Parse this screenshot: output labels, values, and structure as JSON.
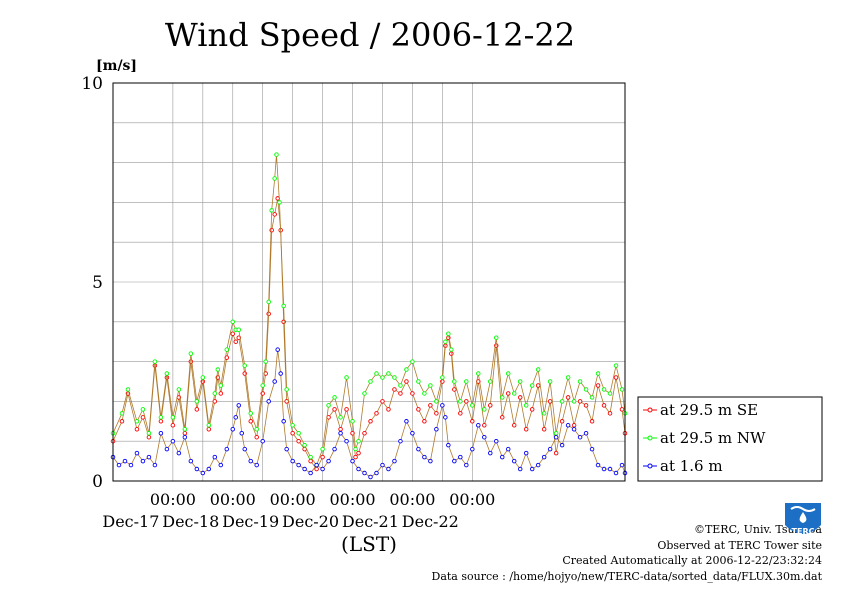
{
  "chart_data": {
    "type": "line",
    "title": "Wind Speed / 2006-12-22",
    "ylabel": "[m/s]",
    "xlabel": "(LST)",
    "ylim": [
      0,
      10
    ],
    "yticks": [
      "0",
      "5",
      "10"
    ],
    "xticks": [
      {
        "time": "00:00",
        "date": "Dec-17"
      },
      {
        "time": "00:00",
        "date": "Dec-18"
      },
      {
        "time": "00:00",
        "date": "Dec-19"
      },
      {
        "time": "00:00",
        "date": "Dec-20"
      },
      {
        "time": "00:00",
        "date": "Dec-21"
      },
      {
        "time": "00:00",
        "date": "Dec-22"
      }
    ],
    "x_range_days": [
      -1.0,
      6.0
    ],
    "legend_position": "right",
    "grid": true,
    "series": [
      {
        "name": "at 29.5 m SE",
        "color": "#ff0000",
        "points": [
          [
            -1.0,
            1.0
          ],
          [
            -0.85,
            1.5
          ],
          [
            -0.75,
            2.2
          ],
          [
            -0.6,
            1.3
          ],
          [
            -0.5,
            1.6
          ],
          [
            -0.4,
            1.1
          ],
          [
            -0.3,
            2.9
          ],
          [
            -0.2,
            1.5
          ],
          [
            -0.1,
            2.6
          ],
          [
            0.0,
            1.4
          ],
          [
            0.1,
            2.1
          ],
          [
            0.2,
            1.2
          ],
          [
            0.3,
            3.0
          ],
          [
            0.4,
            1.8
          ],
          [
            0.5,
            2.5
          ],
          [
            0.6,
            1.3
          ],
          [
            0.7,
            2.0
          ],
          [
            0.75,
            2.6
          ],
          [
            0.8,
            2.2
          ],
          [
            0.9,
            3.1
          ],
          [
            1.0,
            3.7
          ],
          [
            1.05,
            3.5
          ],
          [
            1.1,
            3.6
          ],
          [
            1.2,
            2.7
          ],
          [
            1.3,
            1.5
          ],
          [
            1.4,
            1.1
          ],
          [
            1.5,
            2.2
          ],
          [
            1.55,
            2.7
          ],
          [
            1.6,
            4.2
          ],
          [
            1.65,
            6.3
          ],
          [
            1.7,
            6.7
          ],
          [
            1.75,
            7.1
          ],
          [
            1.8,
            6.3
          ],
          [
            1.85,
            4.0
          ],
          [
            1.9,
            2.0
          ],
          [
            2.0,
            1.2
          ],
          [
            2.1,
            1.0
          ],
          [
            2.2,
            0.8
          ],
          [
            2.3,
            0.5
          ],
          [
            2.4,
            0.3
          ],
          [
            2.5,
            0.6
          ],
          [
            2.6,
            1.6
          ],
          [
            2.7,
            1.8
          ],
          [
            2.8,
            1.3
          ],
          [
            2.9,
            1.8
          ],
          [
            3.0,
            1.2
          ],
          [
            3.05,
            0.6
          ],
          [
            3.1,
            0.7
          ],
          [
            3.2,
            1.2
          ],
          [
            3.3,
            1.5
          ],
          [
            3.4,
            1.7
          ],
          [
            3.5,
            2.0
          ],
          [
            3.6,
            1.8
          ],
          [
            3.7,
            2.3
          ],
          [
            3.8,
            2.2
          ],
          [
            3.9,
            2.5
          ],
          [
            4.0,
            2.2
          ],
          [
            4.1,
            1.8
          ],
          [
            4.2,
            1.5
          ],
          [
            4.3,
            1.9
          ],
          [
            4.4,
            1.7
          ],
          [
            4.5,
            2.5
          ],
          [
            4.55,
            3.4
          ],
          [
            4.6,
            3.6
          ],
          [
            4.65,
            3.2
          ],
          [
            4.7,
            2.3
          ],
          [
            4.8,
            1.7
          ],
          [
            4.9,
            2.0
          ],
          [
            5.0,
            1.5
          ],
          [
            5.1,
            2.5
          ],
          [
            5.2,
            1.4
          ],
          [
            5.3,
            1.9
          ],
          [
            5.4,
            3.4
          ],
          [
            5.5,
            1.6
          ],
          [
            5.6,
            2.2
          ],
          [
            5.7,
            1.4
          ],
          [
            5.8,
            2.1
          ],
          [
            5.9,
            1.3
          ],
          [
            6.0,
            1.8
          ],
          [
            6.1,
            2.4
          ],
          [
            6.2,
            1.3
          ],
          [
            6.3,
            2.0
          ],
          [
            6.4,
            0.7
          ],
          [
            6.5,
            1.5
          ],
          [
            6.6,
            2.1
          ],
          [
            6.7,
            1.4
          ],
          [
            6.8,
            2.0
          ],
          [
            6.9,
            1.9
          ],
          [
            7.0,
            1.5
          ],
          [
            7.1,
            2.4
          ],
          [
            7.2,
            1.9
          ],
          [
            7.3,
            1.7
          ],
          [
            7.4,
            2.6
          ],
          [
            7.5,
            1.8
          ],
          [
            7.55,
            1.2
          ]
        ]
      },
      {
        "name": "at 29.5 m NW",
        "color": "#00ff00",
        "points": [
          [
            -1.0,
            1.2
          ],
          [
            -0.85,
            1.7
          ],
          [
            -0.75,
            2.3
          ],
          [
            -0.6,
            1.5
          ],
          [
            -0.5,
            1.8
          ],
          [
            -0.4,
            1.2
          ],
          [
            -0.3,
            3.0
          ],
          [
            -0.2,
            1.6
          ],
          [
            -0.1,
            2.7
          ],
          [
            0.0,
            1.6
          ],
          [
            0.1,
            2.3
          ],
          [
            0.2,
            1.3
          ],
          [
            0.3,
            3.2
          ],
          [
            0.4,
            2.0
          ],
          [
            0.5,
            2.6
          ],
          [
            0.6,
            1.4
          ],
          [
            0.7,
            2.2
          ],
          [
            0.75,
            2.8
          ],
          [
            0.8,
            2.4
          ],
          [
            0.9,
            3.3
          ],
          [
            1.0,
            4.0
          ],
          [
            1.05,
            3.8
          ],
          [
            1.1,
            3.8
          ],
          [
            1.2,
            2.9
          ],
          [
            1.3,
            1.7
          ],
          [
            1.4,
            1.3
          ],
          [
            1.5,
            2.4
          ],
          [
            1.55,
            3.0
          ],
          [
            1.6,
            4.5
          ],
          [
            1.65,
            6.8
          ],
          [
            1.7,
            7.6
          ],
          [
            1.73,
            8.2
          ],
          [
            1.78,
            7.0
          ],
          [
            1.85,
            4.4
          ],
          [
            1.9,
            2.3
          ],
          [
            2.0,
            1.4
          ],
          [
            2.1,
            1.2
          ],
          [
            2.2,
            0.9
          ],
          [
            2.3,
            0.6
          ],
          [
            2.4,
            0.4
          ],
          [
            2.5,
            0.8
          ],
          [
            2.6,
            1.9
          ],
          [
            2.7,
            2.1
          ],
          [
            2.8,
            1.6
          ],
          [
            2.9,
            2.6
          ],
          [
            3.0,
            1.5
          ],
          [
            3.05,
            0.8
          ],
          [
            3.1,
            1.0
          ],
          [
            3.2,
            2.2
          ],
          [
            3.3,
            2.5
          ],
          [
            3.4,
            2.7
          ],
          [
            3.5,
            2.6
          ],
          [
            3.6,
            2.7
          ],
          [
            3.7,
            2.6
          ],
          [
            3.8,
            2.4
          ],
          [
            3.9,
            2.8
          ],
          [
            4.0,
            3.0
          ],
          [
            4.1,
            2.5
          ],
          [
            4.2,
            2.2
          ],
          [
            4.3,
            2.4
          ],
          [
            4.4,
            2.0
          ],
          [
            4.5,
            2.6
          ],
          [
            4.55,
            3.5
          ],
          [
            4.6,
            3.7
          ],
          [
            4.65,
            3.3
          ],
          [
            4.7,
            2.5
          ],
          [
            4.8,
            2.0
          ],
          [
            4.9,
            2.5
          ],
          [
            5.0,
            1.9
          ],
          [
            5.1,
            2.7
          ],
          [
            5.2,
            1.8
          ],
          [
            5.3,
            2.5
          ],
          [
            5.4,
            3.6
          ],
          [
            5.5,
            2.1
          ],
          [
            5.6,
            2.7
          ],
          [
            5.7,
            2.2
          ],
          [
            5.8,
            2.5
          ],
          [
            5.9,
            1.9
          ],
          [
            6.0,
            2.4
          ],
          [
            6.1,
            2.8
          ],
          [
            6.2,
            1.7
          ],
          [
            6.3,
            2.5
          ],
          [
            6.4,
            1.2
          ],
          [
            6.5,
            2.0
          ],
          [
            6.6,
            2.6
          ],
          [
            6.7,
            2.0
          ],
          [
            6.8,
            2.5
          ],
          [
            6.9,
            2.3
          ],
          [
            7.0,
            2.1
          ],
          [
            7.1,
            2.7
          ],
          [
            7.2,
            2.3
          ],
          [
            7.3,
            2.2
          ],
          [
            7.4,
            2.9
          ],
          [
            7.5,
            2.3
          ],
          [
            7.55,
            1.7
          ]
        ]
      },
      {
        "name": "at 1.6 m",
        "color": "#0000ff",
        "points": [
          [
            -1.0,
            0.6
          ],
          [
            -0.9,
            0.4
          ],
          [
            -0.8,
            0.5
          ],
          [
            -0.7,
            0.4
          ],
          [
            -0.6,
            0.7
          ],
          [
            -0.5,
            0.5
          ],
          [
            -0.4,
            0.6
          ],
          [
            -0.3,
            0.4
          ],
          [
            -0.2,
            1.2
          ],
          [
            -0.1,
            0.8
          ],
          [
            0.0,
            1.0
          ],
          [
            0.1,
            0.7
          ],
          [
            0.2,
            1.1
          ],
          [
            0.3,
            0.5
          ],
          [
            0.4,
            0.3
          ],
          [
            0.5,
            0.2
          ],
          [
            0.6,
            0.3
          ],
          [
            0.7,
            0.6
          ],
          [
            0.8,
            0.4
          ],
          [
            0.9,
            0.8
          ],
          [
            1.0,
            1.3
          ],
          [
            1.05,
            1.6
          ],
          [
            1.1,
            1.9
          ],
          [
            1.15,
            1.2
          ],
          [
            1.2,
            0.8
          ],
          [
            1.3,
            0.5
          ],
          [
            1.4,
            0.4
          ],
          [
            1.5,
            1.0
          ],
          [
            1.6,
            2.0
          ],
          [
            1.7,
            2.5
          ],
          [
            1.75,
            3.3
          ],
          [
            1.8,
            2.7
          ],
          [
            1.85,
            1.5
          ],
          [
            1.9,
            0.8
          ],
          [
            2.0,
            0.5
          ],
          [
            2.1,
            0.4
          ],
          [
            2.2,
            0.3
          ],
          [
            2.3,
            0.2
          ],
          [
            2.4,
            0.4
          ],
          [
            2.5,
            0.3
          ],
          [
            2.6,
            0.5
          ],
          [
            2.7,
            0.8
          ],
          [
            2.8,
            1.2
          ],
          [
            2.9,
            1.0
          ],
          [
            3.0,
            0.5
          ],
          [
            3.1,
            0.3
          ],
          [
            3.2,
            0.2
          ],
          [
            3.3,
            0.1
          ],
          [
            3.4,
            0.2
          ],
          [
            3.5,
            0.4
          ],
          [
            3.6,
            0.3
          ],
          [
            3.7,
            0.5
          ],
          [
            3.8,
            1.0
          ],
          [
            3.9,
            1.5
          ],
          [
            4.0,
            1.2
          ],
          [
            4.1,
            0.8
          ],
          [
            4.2,
            0.6
          ],
          [
            4.3,
            0.5
          ],
          [
            4.4,
            1.3
          ],
          [
            4.5,
            1.9
          ],
          [
            4.55,
            1.6
          ],
          [
            4.6,
            0.9
          ],
          [
            4.7,
            0.5
          ],
          [
            4.8,
            0.6
          ],
          [
            4.9,
            0.4
          ],
          [
            5.0,
            0.8
          ],
          [
            5.1,
            1.4
          ],
          [
            5.2,
            1.1
          ],
          [
            5.3,
            0.7
          ],
          [
            5.4,
            1.0
          ],
          [
            5.5,
            0.6
          ],
          [
            5.6,
            0.8
          ],
          [
            5.7,
            0.5
          ],
          [
            5.8,
            0.3
          ],
          [
            5.9,
            0.7
          ],
          [
            6.0,
            0.3
          ],
          [
            6.1,
            0.4
          ],
          [
            6.2,
            0.6
          ],
          [
            6.3,
            0.8
          ],
          [
            6.4,
            1.1
          ],
          [
            6.5,
            0.9
          ],
          [
            6.6,
            1.4
          ],
          [
            6.7,
            1.3
          ],
          [
            6.8,
            1.1
          ],
          [
            6.9,
            1.2
          ],
          [
            7.0,
            0.8
          ],
          [
            7.1,
            0.4
          ],
          [
            7.2,
            0.3
          ],
          [
            7.3,
            0.3
          ],
          [
            7.4,
            0.2
          ],
          [
            7.5,
            0.4
          ],
          [
            7.55,
            0.2
          ]
        ]
      }
    ]
  },
  "credits": {
    "copyright": "©TERC, Univ. Tsukuba",
    "site": "Observed at TERC Tower site",
    "created": "Created Automatically at 2006-12-22/23:32:24",
    "source": "Data source : /home/hojyo/new/TERC-data/sorted_data/FLUX.30m.dat"
  },
  "logo": {
    "text": "TERC",
    "color": "#1c6fc4"
  }
}
